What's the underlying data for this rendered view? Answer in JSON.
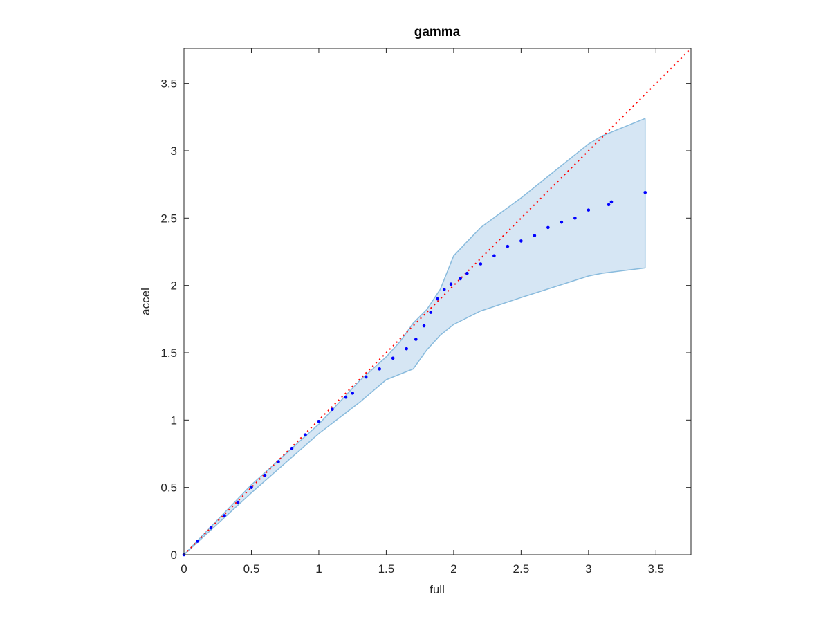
{
  "chart_data": {
    "type": "scatter",
    "title": "gamma",
    "x_label": "full",
    "y_label": "accel",
    "xlim": [
      0,
      3.76
    ],
    "ylim": [
      0,
      3.76
    ],
    "xticks": [
      0,
      0.5,
      1,
      1.5,
      2,
      2.5,
      3,
      3.5
    ],
    "yticks": [
      0,
      0.5,
      1,
      1.5,
      2,
      2.5,
      3,
      3.5
    ],
    "series": [
      {
        "color": "#0000ff",
        "x": [
          0,
          0.1,
          0.2,
          0.3,
          0.4,
          0.5,
          0.6,
          0.7,
          0.8,
          0.9,
          1.0,
          1.1,
          1.2,
          1.25,
          1.35,
          1.45,
          1.55,
          1.65,
          1.72,
          1.78,
          1.83,
          1.88,
          1.93,
          1.98,
          2.05,
          2.1,
          2.2,
          2.3,
          2.4,
          2.5,
          2.6,
          2.7,
          2.8,
          2.9,
          3.0,
          3.15,
          3.17,
          3.42
        ],
        "values": [
          0,
          0.1,
          0.2,
          0.29,
          0.39,
          0.5,
          0.59,
          0.69,
          0.79,
          0.89,
          0.99,
          1.08,
          1.17,
          1.2,
          1.32,
          1.38,
          1.46,
          1.53,
          1.6,
          1.7,
          1.8,
          1.9,
          1.97,
          2.01,
          2.05,
          2.09,
          2.16,
          2.22,
          2.29,
          2.33,
          2.37,
          2.43,
          2.47,
          2.5,
          2.56,
          2.6,
          2.62,
          2.69
        ]
      }
    ],
    "band": {
      "color": "#d6e6f4",
      "edge_color": "#89bbdd",
      "x": [
        0,
        0.5,
        1,
        1.3,
        1.5,
        1.6,
        1.7,
        1.8,
        1.9,
        2.0,
        2.2,
        2.5,
        3.0,
        3.1,
        3.42
      ],
      "upper": [
        0,
        0.52,
        0.97,
        1.29,
        1.47,
        1.58,
        1.72,
        1.82,
        1.97,
        2.22,
        2.43,
        2.65,
        3.05,
        3.11,
        3.24
      ],
      "lower": [
        0,
        0.46,
        0.9,
        1.13,
        1.3,
        1.34,
        1.38,
        1.52,
        1.63,
        1.71,
        1.81,
        1.91,
        2.07,
        2.09,
        2.13
      ]
    },
    "reference": {
      "color": "#ff0000",
      "x": [
        0,
        3.76
      ],
      "values": [
        0,
        3.76
      ]
    }
  }
}
